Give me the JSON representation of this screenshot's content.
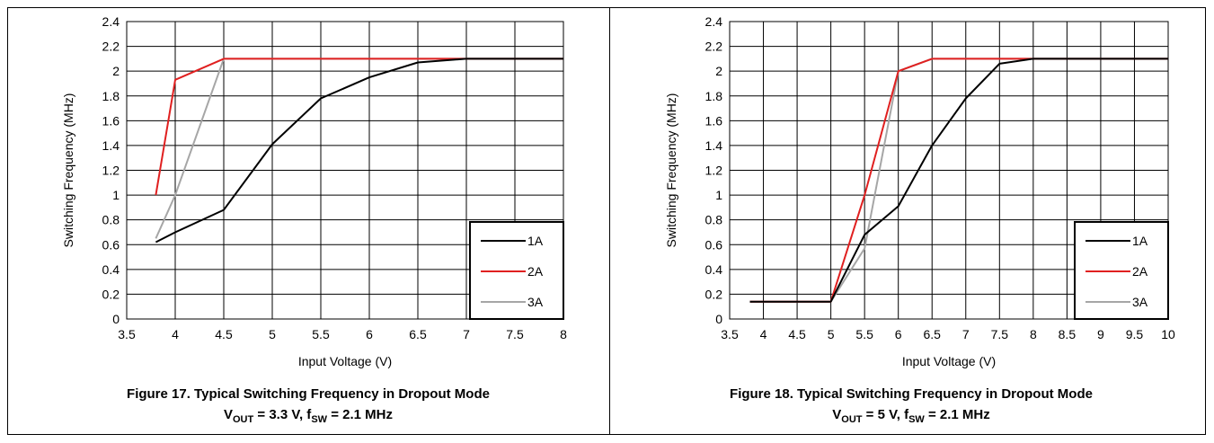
{
  "chart_data": [
    {
      "type": "line",
      "xlabel": "Input Voltage (V)",
      "ylabel": "Switching Frequency (MHz)",
      "xlim": [
        3.5,
        8
      ],
      "ylim": [
        0,
        2.4
      ],
      "xticks": [
        3.5,
        4,
        4.5,
        5,
        5.5,
        6,
        6.5,
        7,
        7.5,
        8
      ],
      "yticks": [
        0,
        0.2,
        0.4,
        0.6,
        0.8,
        1,
        1.2,
        1.4,
        1.6,
        1.8,
        2,
        2.2,
        2.4
      ],
      "xtick_labels": [
        "3.5",
        "4",
        "4.5",
        "5",
        "5.5",
        "6",
        "6.5",
        "7",
        "7.5",
        "8"
      ],
      "ytick_labels": [
        "0",
        "0.2",
        "0.4",
        "0.6",
        "0.8",
        "1",
        "1.2",
        "1.4",
        "1.6",
        "1.8",
        "2",
        "2.2",
        "2.4"
      ],
      "grid": true,
      "legend_position": "bottom-right",
      "series": [
        {
          "name": "1A",
          "color": "#000000",
          "x": [
            3.8,
            4,
            4.5,
            5,
            5.5,
            6,
            6.5,
            7,
            8
          ],
          "y": [
            0.62,
            0.7,
            0.88,
            1.41,
            1.78,
            1.95,
            2.07,
            2.1,
            2.1
          ]
        },
        {
          "name": "2A",
          "color": "#e02020",
          "x": [
            3.8,
            4,
            4.5,
            5,
            6,
            7,
            8
          ],
          "y": [
            1.0,
            1.93,
            2.1,
            2.1,
            2.1,
            2.1,
            2.1
          ]
        },
        {
          "name": "3A",
          "color": "#a6a6a6",
          "x": [
            3.8,
            4,
            4.5,
            5,
            6,
            7,
            8
          ],
          "y": [
            0.65,
            1.0,
            2.1,
            2.1,
            2.1,
            2.1,
            2.1
          ]
        }
      ],
      "caption_title": "Figure 17. Typical Switching Frequency in Dropout Mode",
      "caption_cond": {
        "v": "V",
        "v_sub": "OUT",
        "v_rest": " = 3.3 V, f",
        "f_sub": "SW",
        "f_rest": " = 2.1 MHz"
      }
    },
    {
      "type": "line",
      "xlabel": "Input Voltage (V)",
      "ylabel": "Switching Frequency (MHz)",
      "xlim": [
        3.5,
        10
      ],
      "ylim": [
        0,
        2.4
      ],
      "xticks": [
        3.5,
        4,
        4.5,
        5,
        5.5,
        6,
        6.5,
        7,
        7.5,
        8,
        8.5,
        9,
        9.5,
        10
      ],
      "yticks": [
        0,
        0.2,
        0.4,
        0.6,
        0.8,
        1,
        1.2,
        1.4,
        1.6,
        1.8,
        2,
        2.2,
        2.4
      ],
      "xtick_labels": [
        "3.5",
        "4",
        "4.5",
        "5",
        "5.5",
        "6",
        "6.5",
        "7",
        "7.5",
        "8",
        "8.5",
        "9",
        "9.5",
        "10"
      ],
      "ytick_labels": [
        "0",
        "0.2",
        "0.4",
        "0.6",
        "0.8",
        "1",
        "1.2",
        "1.4",
        "1.6",
        "1.8",
        "2",
        "2.2",
        "2.4"
      ],
      "grid": true,
      "legend_position": "bottom-right",
      "series": [
        {
          "name": "1A",
          "color": "#000000",
          "x": [
            3.8,
            4,
            4.5,
            5,
            5.5,
            6,
            6.5,
            7,
            7.5,
            8,
            10
          ],
          "y": [
            0.14,
            0.14,
            0.14,
            0.14,
            0.68,
            0.91,
            1.4,
            1.78,
            2.06,
            2.1,
            2.1
          ]
        },
        {
          "name": "2A",
          "color": "#e02020",
          "x": [
            3.8,
            5,
            5.5,
            6,
            6.5,
            8,
            10
          ],
          "y": [
            0.14,
            0.14,
            1.0,
            2.0,
            2.1,
            2.1,
            2.1
          ]
        },
        {
          "name": "3A",
          "color": "#a6a6a6",
          "x": [
            3.8,
            5,
            5.5,
            6,
            6.5,
            8,
            10
          ],
          "y": [
            0.14,
            0.14,
            0.57,
            2.0,
            2.1,
            2.1,
            2.1
          ]
        }
      ],
      "caption_title": "Figure 18. Typical Switching Frequency in Dropout Mode",
      "caption_cond": {
        "v": "V",
        "v_sub": "OUT",
        "v_rest": " = 5 V, f",
        "f_sub": "SW",
        "f_rest": " = 2.1 MHz"
      }
    }
  ]
}
